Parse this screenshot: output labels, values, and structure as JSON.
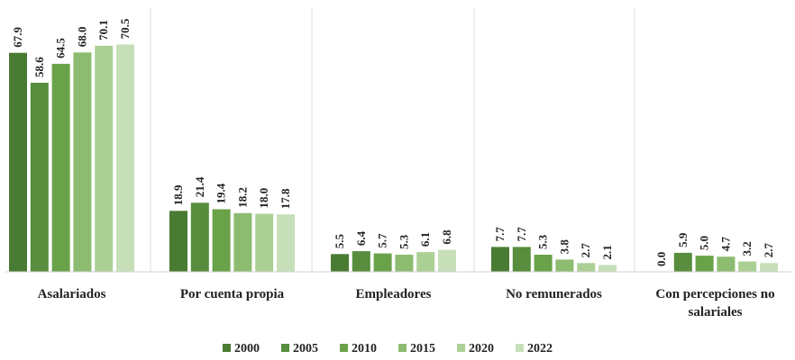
{
  "chart_data": {
    "type": "bar",
    "categories": [
      "Asalariados",
      "Por cuenta propia",
      "Empleadores",
      "No remunerados",
      "Con percepciones no salariales"
    ],
    "category_label_lines": [
      [
        "Asalariados"
      ],
      [
        "Por cuenta propia"
      ],
      [
        "Empleadores"
      ],
      [
        "No remunerados"
      ],
      [
        "Con percepciones no",
        "salariales"
      ]
    ],
    "series": [
      {
        "name": "2000",
        "color": "#4a7b33",
        "values": [
          67.9,
          18.9,
          5.5,
          7.7,
          0.0
        ],
        "labels": [
          "67.9",
          "18.9",
          "5.5",
          "7.7",
          "0.0"
        ]
      },
      {
        "name": "2005",
        "color": "#578d3c",
        "values": [
          58.6,
          21.4,
          6.4,
          7.7,
          5.9
        ],
        "labels": [
          "58.6",
          "21.4",
          "6.4",
          "7.7",
          "5.9"
        ]
      },
      {
        "name": "2010",
        "color": "#6aa24a",
        "values": [
          64.5,
          19.4,
          5.7,
          5.3,
          5.0
        ],
        "labels": [
          "64.5",
          "19.4",
          "5.7",
          "5.3",
          "5.0"
        ]
      },
      {
        "name": "2015",
        "color": "#8dbc70",
        "values": [
          68.0,
          18.2,
          5.3,
          3.8,
          4.7
        ],
        "labels": [
          "68.0",
          "18.2",
          "5.3",
          "3.8",
          "4.7"
        ]
      },
      {
        "name": "2020",
        "color": "#abd095",
        "values": [
          70.1,
          18.0,
          6.1,
          2.7,
          3.2
        ],
        "labels": [
          "70.1",
          "18.0",
          "6.1",
          "2.7",
          "3.2"
        ]
      },
      {
        "name": "2022",
        "color": "#c7dfb8",
        "values": [
          70.5,
          17.8,
          6.8,
          2.1,
          2.7
        ],
        "labels": [
          "70.5",
          "17.8",
          "6.8",
          "2.1",
          "2.7"
        ]
      }
    ],
    "ylim": [
      0,
      72
    ],
    "grid": false,
    "category_separators": true,
    "legend_position": "bottom"
  }
}
